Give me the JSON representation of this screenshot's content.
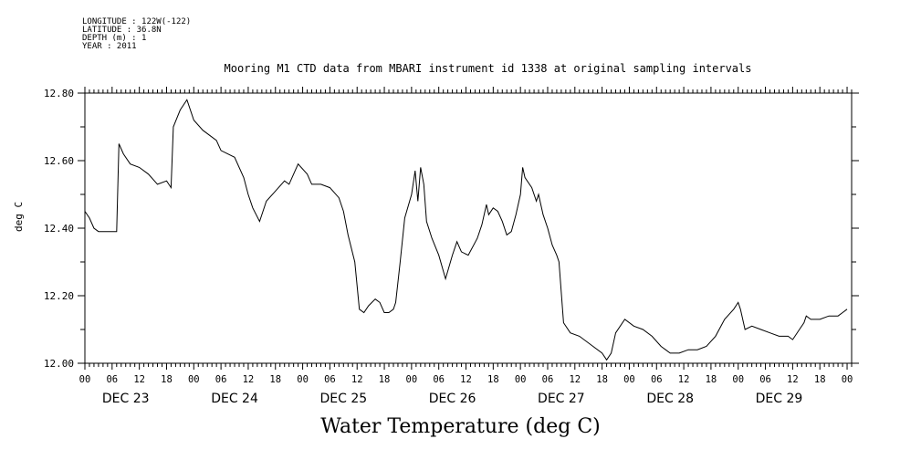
{
  "meta_lines": [
    "LONGITUDE : 122W(-122)",
    "LATITUDE : 36.8N",
    "DEPTH (m) : 1",
    "YEAR : 2011"
  ],
  "chart_data": {
    "type": "line",
    "title": "Mooring M1 CTD data from MBARI instrument id 1338 at original sampling intervals",
    "xlabel": "Water Temperature (deg C)",
    "ylabel": "deg C",
    "ylim": [
      12.0,
      12.8
    ],
    "yticks": [
      "12.00",
      "12.20",
      "12.40",
      "12.60",
      "12.80"
    ],
    "xlim_hours": [
      0,
      169
    ],
    "hour_tick_labels": [
      "00",
      "06",
      "12",
      "18"
    ],
    "day_labels": [
      "DEC 23",
      "DEC 24",
      "DEC 25",
      "DEC 26",
      "DEC 27",
      "DEC 28",
      "DEC 29"
    ],
    "grid": false,
    "series": [
      {
        "values": [
          [
            0,
            12.45
          ],
          [
            1,
            12.43
          ],
          [
            2,
            12.4
          ],
          [
            3,
            12.39
          ],
          [
            4,
            12.39
          ],
          [
            5,
            12.39
          ],
          [
            6,
            12.39
          ],
          [
            7,
            12.39
          ],
          [
            7.5,
            12.65
          ],
          [
            8.5,
            12.62
          ],
          [
            10,
            12.59
          ],
          [
            12,
            12.58
          ],
          [
            14,
            12.56
          ],
          [
            16,
            12.53
          ],
          [
            18,
            12.54
          ],
          [
            19,
            12.52
          ],
          [
            19.5,
            12.7
          ],
          [
            21,
            12.75
          ],
          [
            22.5,
            12.78
          ],
          [
            24,
            12.72
          ],
          [
            26,
            12.69
          ],
          [
            29,
            12.66
          ],
          [
            30,
            12.63
          ],
          [
            33,
            12.61
          ],
          [
            35,
            12.55
          ],
          [
            36,
            12.5
          ],
          [
            37,
            12.46
          ],
          [
            38.5,
            12.42
          ],
          [
            40,
            12.48
          ],
          [
            42,
            12.51
          ],
          [
            44,
            12.54
          ],
          [
            45,
            12.53
          ],
          [
            47,
            12.59
          ],
          [
            49,
            12.56
          ],
          [
            50,
            12.53
          ],
          [
            52,
            12.53
          ],
          [
            54,
            12.52
          ],
          [
            56,
            12.49
          ],
          [
            57,
            12.45
          ],
          [
            58,
            12.38
          ],
          [
            59.5,
            12.3
          ],
          [
            60.5,
            12.16
          ],
          [
            61.5,
            12.15
          ],
          [
            62.5,
            12.17
          ],
          [
            64,
            12.19
          ],
          [
            65,
            12.18
          ],
          [
            66,
            12.15
          ],
          [
            67,
            12.15
          ],
          [
            68,
            12.16
          ],
          [
            68.5,
            12.18
          ],
          [
            69.5,
            12.3
          ],
          [
            70.5,
            12.43
          ],
          [
            72,
            12.5
          ],
          [
            72.8,
            12.57
          ],
          [
            73.4,
            12.48
          ],
          [
            74,
            12.58
          ],
          [
            74.7,
            12.53
          ],
          [
            75.3,
            12.42
          ],
          [
            76.5,
            12.37
          ],
          [
            78,
            12.32
          ],
          [
            79.5,
            12.25
          ],
          [
            81,
            12.32
          ],
          [
            82,
            12.36
          ],
          [
            83,
            12.33
          ],
          [
            84.5,
            12.32
          ],
          [
            86.5,
            12.37
          ],
          [
            87.5,
            12.41
          ],
          [
            88.5,
            12.47
          ],
          [
            89,
            12.44
          ],
          [
            90,
            12.46
          ],
          [
            91,
            12.45
          ],
          [
            92,
            12.42
          ],
          [
            93,
            12.38
          ],
          [
            94,
            12.39
          ],
          [
            95,
            12.44
          ],
          [
            96,
            12.5
          ],
          [
            96.5,
            12.58
          ],
          [
            97,
            12.55
          ],
          [
            98.5,
            12.52
          ],
          [
            99.5,
            12.48
          ],
          [
            100,
            12.5
          ],
          [
            101,
            12.44
          ],
          [
            102,
            12.4
          ],
          [
            103,
            12.35
          ],
          [
            104,
            12.32
          ],
          [
            104.5,
            12.3
          ],
          [
            105.5,
            12.12
          ],
          [
            107,
            12.09
          ],
          [
            109,
            12.08
          ],
          [
            112,
            12.05
          ],
          [
            114,
            12.03
          ],
          [
            115,
            12.01
          ],
          [
            116,
            12.03
          ],
          [
            117,
            12.09
          ],
          [
            119,
            12.13
          ],
          [
            121,
            12.11
          ],
          [
            123,
            12.1
          ],
          [
            125,
            12.08
          ],
          [
            127,
            12.05
          ],
          [
            128,
            12.04
          ],
          [
            129,
            12.03
          ],
          [
            131,
            12.03
          ],
          [
            133,
            12.04
          ],
          [
            135,
            12.04
          ],
          [
            137,
            12.05
          ],
          [
            139,
            12.08
          ],
          [
            141,
            12.13
          ],
          [
            143,
            12.16
          ],
          [
            144,
            12.18
          ],
          [
            144.5,
            12.16
          ],
          [
            145.5,
            12.1
          ],
          [
            147,
            12.11
          ],
          [
            149,
            12.1
          ],
          [
            151,
            12.09
          ],
          [
            153,
            12.08
          ],
          [
            155,
            12.08
          ],
          [
            156,
            12.07
          ],
          [
            156.5,
            12.08
          ],
          [
            157.5,
            12.1
          ],
          [
            158.5,
            12.12
          ],
          [
            159,
            12.14
          ],
          [
            160,
            12.13
          ],
          [
            162,
            12.13
          ],
          [
            164,
            12.14
          ],
          [
            166,
            12.14
          ],
          [
            167,
            12.15
          ],
          [
            168,
            12.16
          ]
        ]
      }
    ]
  }
}
